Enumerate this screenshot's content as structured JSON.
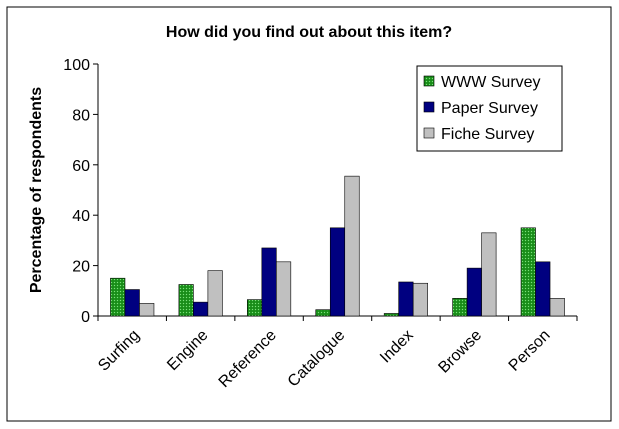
{
  "chart_data": {
    "type": "bar",
    "title": "How did you find out about this item?",
    "xlabel": "",
    "ylabel": "Percentage of respondents",
    "ylim": [
      0,
      100
    ],
    "yticks": [
      0,
      20,
      40,
      60,
      80,
      100
    ],
    "grid": false,
    "legend_position": "top-right",
    "categories": [
      "Surfing",
      "Engine",
      "Reference",
      "Catalogue",
      "Index",
      "Browse",
      "Person"
    ],
    "series": [
      {
        "name": "WWW Survey",
        "color": "#1f9a1f",
        "pattern": "dotted",
        "values": [
          15,
          12.5,
          6.5,
          2.5,
          1,
          7,
          35
        ]
      },
      {
        "name": "Paper Survey",
        "color": "#000080",
        "values": [
          10.5,
          5.5,
          27,
          35,
          13.5,
          19,
          21.5
        ]
      },
      {
        "name": "Fiche Survey",
        "color": "#c0c0c0",
        "values": [
          5,
          18,
          21.5,
          55.5,
          13,
          33,
          7
        ]
      }
    ]
  }
}
